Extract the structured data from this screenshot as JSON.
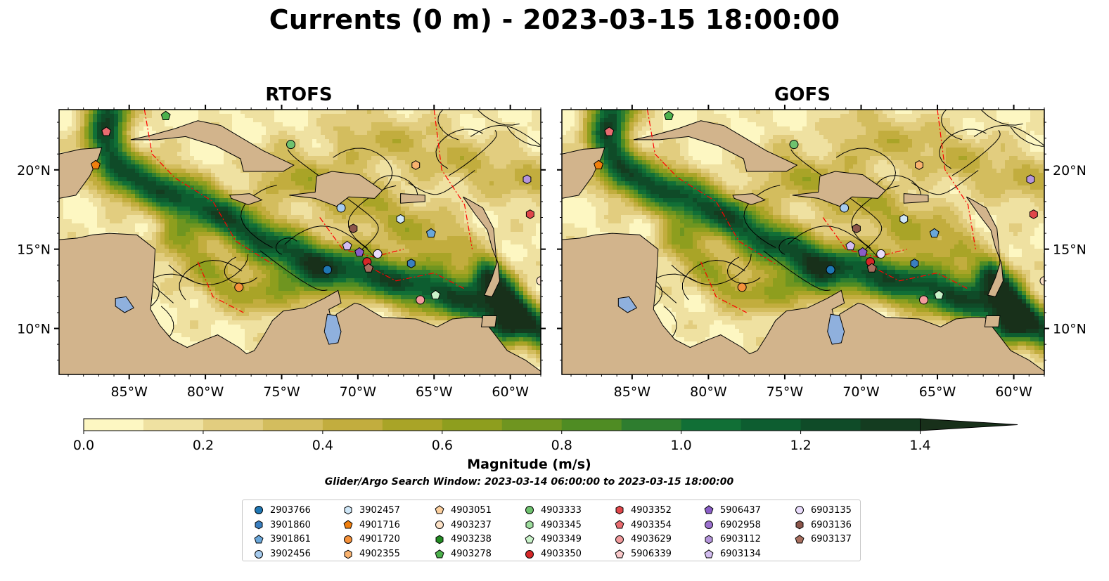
{
  "title": "Currents (0 m) - 2023-03-15 18:00:00",
  "panels": [
    {
      "title": "RTOFS"
    },
    {
      "title": "GOFS"
    }
  ],
  "axes": {
    "lon_ticks": [
      "85°W",
      "80°W",
      "75°W",
      "70°W",
      "65°W",
      "60°W"
    ],
    "lat_ticks": [
      "20°N",
      "15°N",
      "10°N"
    ],
    "lon_range": [
      -89.6,
      -58.0
    ],
    "lat_range": [
      7.1,
      23.8
    ]
  },
  "colorbar": {
    "label": "Magnitude (m/s)",
    "ticks": [
      "0.0",
      "0.2",
      "0.4",
      "0.6",
      "0.8",
      "1.0",
      "1.2",
      "1.4"
    ],
    "range": [
      0.0,
      1.5
    ],
    "colors": [
      "#fdf7c2",
      "#efe1a1",
      "#e2cd7f",
      "#d3bd5e",
      "#c2ad3e",
      "#a9a427",
      "#8e9e1e",
      "#6f9520",
      "#4f8c23",
      "#2e7d2f",
      "#116f36",
      "#0d5d30",
      "#0f4b28",
      "#143c20",
      "#18301a"
    ]
  },
  "search_window": "Glider/Argo Search Window: 2023-03-14 06:00:00 to 2023-03-15 18:00:00",
  "colors": {
    "land": "#d2b48c",
    "water_body": "#8fb0dd",
    "eez_line": "#ff0000"
  },
  "legend": [
    {
      "id": "2903766",
      "marker": "circle",
      "color": "#1f77b4"
    },
    {
      "id": "3901860",
      "marker": "hexagon",
      "color": "#3a7fc0"
    },
    {
      "id": "3901861",
      "marker": "pentagon",
      "color": "#6aa7da"
    },
    {
      "id": "3902456",
      "marker": "circle",
      "color": "#a6cbee"
    },
    {
      "id": "3902457",
      "marker": "hexagon",
      "color": "#cfe7f8"
    },
    {
      "id": "4901716",
      "marker": "pentagon",
      "color": "#f07f0e"
    },
    {
      "id": "4901720",
      "marker": "circle",
      "color": "#f5913a"
    },
    {
      "id": "4902355",
      "marker": "hexagon",
      "color": "#f9b26e"
    },
    {
      "id": "4903051",
      "marker": "pentagon",
      "color": "#fbcf9e"
    },
    {
      "id": "4903237",
      "marker": "circle",
      "color": "#fde2c7"
    },
    {
      "id": "4903238",
      "marker": "hexagon",
      "color": "#228b22"
    },
    {
      "id": "4903278",
      "marker": "pentagon",
      "color": "#4cb04c"
    },
    {
      "id": "4903333",
      "marker": "circle",
      "color": "#6fc26f"
    },
    {
      "id": "4903345",
      "marker": "hexagon",
      "color": "#9edd9e"
    },
    {
      "id": "4903349",
      "marker": "pentagon",
      "color": "#c9f2c9"
    },
    {
      "id": "4903350",
      "marker": "circle",
      "color": "#d62728"
    },
    {
      "id": "4903352",
      "marker": "hexagon",
      "color": "#e0464a"
    },
    {
      "id": "4903354",
      "marker": "pentagon",
      "color": "#ea6c70"
    },
    {
      "id": "4903629",
      "marker": "circle",
      "color": "#f29b9d"
    },
    {
      "id": "5906339",
      "marker": "pentagon",
      "color": "#f9c9ca"
    },
    {
      "id": "5906437",
      "marker": "pentagon",
      "color": "#8a5ec7"
    },
    {
      "id": "6902958",
      "marker": "circle",
      "color": "#9c71cf"
    },
    {
      "id": "6903112",
      "marker": "hexagon",
      "color": "#b595dc"
    },
    {
      "id": "6903134",
      "marker": "pentagon",
      "color": "#d3bdf0"
    },
    {
      "id": "6903135",
      "marker": "circle",
      "color": "#e9dcfb"
    },
    {
      "id": "6903136",
      "marker": "hexagon",
      "color": "#8c564b"
    },
    {
      "id": "6903137",
      "marker": "pentagon",
      "color": "#a86f5f"
    }
  ],
  "floats": [
    {
      "id": "4903278",
      "lon": -82.6,
      "lat": 23.4
    },
    {
      "id": "4903354",
      "lon": -86.5,
      "lat": 22.4
    },
    {
      "id": "4901716",
      "lon": -87.2,
      "lat": 20.3
    },
    {
      "id": "4903333",
      "lon": -74.4,
      "lat": 21.6
    },
    {
      "id": "4902355",
      "lon": -66.2,
      "lat": 20.3
    },
    {
      "id": "6903112",
      "lon": -58.9,
      "lat": 19.4
    },
    {
      "id": "3902456",
      "lon": -71.1,
      "lat": 17.6
    },
    {
      "id": "3902457",
      "lon": -67.2,
      "lat": 16.9
    },
    {
      "id": "4903352",
      "lon": -58.7,
      "lat": 17.2
    },
    {
      "id": "3901861",
      "lon": -65.2,
      "lat": 16.0
    },
    {
      "id": "6903136",
      "lon": -70.3,
      "lat": 16.3
    },
    {
      "id": "6903134",
      "lon": -70.7,
      "lat": 15.2
    },
    {
      "id": "5906437",
      "lon": -69.9,
      "lat": 14.8
    },
    {
      "id": "6903135",
      "lon": -68.7,
      "lat": 14.7
    },
    {
      "id": "4903350",
      "lon": -69.4,
      "lat": 14.2
    },
    {
      "id": "6903137",
      "lon": -69.3,
      "lat": 13.8
    },
    {
      "id": "2903766",
      "lon": -72.0,
      "lat": 13.7
    },
    {
      "id": "3901860",
      "lon": -66.5,
      "lat": 14.1
    },
    {
      "id": "4901720",
      "lon": -77.8,
      "lat": 12.6
    },
    {
      "id": "4903629",
      "lon": -65.9,
      "lat": 11.8
    },
    {
      "id": "4903349",
      "lon": -64.9,
      "lat": 12.1
    },
    {
      "id": "4903237",
      "lon": -58.0,
      "lat": 13.0
    }
  ]
}
